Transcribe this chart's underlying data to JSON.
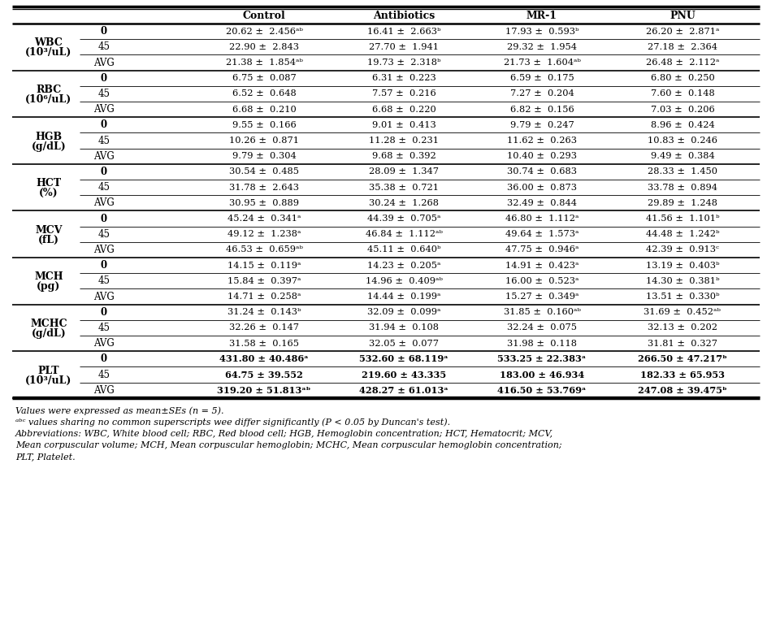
{
  "col_headers": [
    "Control",
    "Antibiotics",
    "MR-1",
    "PNU"
  ],
  "row_groups": [
    {
      "label1": "WBC",
      "label2": "(10³/uL)",
      "rows": [
        [
          "0",
          "20.62 ±  2.456ᵃᵇ",
          "16.41 ±  2.663ᵇ",
          "17.93 ±  0.593ᵇ",
          "26.20 ±  2.871ᵃ",
          false
        ],
        [
          "45",
          "22.90 ±  2.843",
          "27.70 ±  1.941",
          "29.32 ±  1.954",
          "27.18 ±  2.364",
          false
        ],
        [
          "AVG",
          "21.38 ±  1.854ᵃᵇ",
          "19.73 ±  2.318ᵇ",
          "21.73 ±  1.604ᵃᵇ",
          "26.48 ±  2.112ᵃ",
          false
        ]
      ]
    },
    {
      "label1": "RBC",
      "label2": "(10⁶/uL)",
      "rows": [
        [
          "0",
          "6.75 ±  0.087",
          "6.31 ±  0.223",
          "6.59 ±  0.175",
          "6.80 ±  0.250",
          false
        ],
        [
          "45",
          "6.52 ±  0.648",
          "7.57 ±  0.216",
          "7.27 ±  0.204",
          "7.60 ±  0.148",
          false
        ],
        [
          "AVG",
          "6.68 ±  0.210",
          "6.68 ±  0.220",
          "6.82 ±  0.156",
          "7.03 ±  0.206",
          false
        ]
      ]
    },
    {
      "label1": "HGB",
      "label2": "(g/dL)",
      "rows": [
        [
          "0",
          "9.55 ±  0.166",
          "9.01 ±  0.413",
          "9.79 ±  0.247",
          "8.96 ±  0.424",
          false
        ],
        [
          "45",
          "10.26 ±  0.871",
          "11.28 ±  0.231",
          "11.62 ±  0.263",
          "10.83 ±  0.246",
          false
        ],
        [
          "AVG",
          "9.79 ±  0.304",
          "9.68 ±  0.392",
          "10.40 ±  0.293",
          "9.49 ±  0.384",
          false
        ]
      ]
    },
    {
      "label1": "HCT",
      "label2": "(%)",
      "rows": [
        [
          "0",
          "30.54 ±  0.485",
          "28.09 ±  1.347",
          "30.74 ±  0.683",
          "28.33 ±  1.450",
          false
        ],
        [
          "45",
          "31.78 ±  2.643",
          "35.38 ±  0.721",
          "36.00 ±  0.873",
          "33.78 ±  0.894",
          false
        ],
        [
          "AVG",
          "30.95 ±  0.889",
          "30.24 ±  1.268",
          "32.49 ±  0.844",
          "29.89 ±  1.248",
          false
        ]
      ]
    },
    {
      "label1": "MCV",
      "label2": "(fL)",
      "rows": [
        [
          "0",
          "45.24 ±  0.341ᵃ",
          "44.39 ±  0.705ᵃ",
          "46.80 ±  1.112ᵃ",
          "41.56 ±  1.101ᵇ",
          false
        ],
        [
          "45",
          "49.12 ±  1.238ᵃ",
          "46.84 ±  1.112ᵃᵇ",
          "49.64 ±  1.573ᵃ",
          "44.48 ±  1.242ᵇ",
          false
        ],
        [
          "AVG",
          "46.53 ±  0.659ᵃᵇ",
          "45.11 ±  0.640ᵇ",
          "47.75 ±  0.946ᵃ",
          "42.39 ±  0.913ᶜ",
          false
        ]
      ]
    },
    {
      "label1": "MCH",
      "label2": "(pg)",
      "rows": [
        [
          "0",
          "14.15 ±  0.119ᵃ",
          "14.23 ±  0.205ᵃ",
          "14.91 ±  0.423ᵃ",
          "13.19 ±  0.403ᵇ",
          false
        ],
        [
          "45",
          "15.84 ±  0.397ᵃ",
          "14.96 ±  0.409ᵃᵇ",
          "16.00 ±  0.523ᵃ",
          "14.30 ±  0.381ᵇ",
          false
        ],
        [
          "AVG",
          "14.71 ±  0.258ᵃ",
          "14.44 ±  0.199ᵃ",
          "15.27 ±  0.349ᵃ",
          "13.51 ±  0.330ᵇ",
          false
        ]
      ]
    },
    {
      "label1": "MCHC",
      "label2": "(g/dL)",
      "rows": [
        [
          "0",
          "31.24 ±  0.143ᵇ",
          "32.09 ±  0.099ᵃ",
          "31.85 ±  0.160ᵃᵇ",
          "31.69 ±  0.452ᵃᵇ",
          false
        ],
        [
          "45",
          "32.26 ±  0.147",
          "31.94 ±  0.108",
          "32.24 ±  0.075",
          "32.13 ±  0.202",
          false
        ],
        [
          "AVG",
          "31.58 ±  0.165",
          "32.05 ±  0.077",
          "31.98 ±  0.118",
          "31.81 ±  0.327",
          false
        ]
      ]
    },
    {
      "label1": "PLT",
      "label2": "(10³/uL)",
      "rows": [
        [
          "0",
          "431.80 ± 40.486ᵃ",
          "532.60 ± 68.119ᵃ",
          "533.25 ± 22.383ᵃ",
          "266.50 ± 47.217ᵇ",
          true
        ],
        [
          "45",
          "64.75 ± 39.552",
          "219.60 ± 43.335",
          "183.00 ± 46.934",
          "182.33 ± 65.953",
          true
        ],
        [
          "AVG",
          "319.20 ± 51.813ᵃᵇ",
          "428.27 ± 61.013ᵃ",
          "416.50 ± 53.769ᵃ",
          "247.08 ± 39.475ᵇ",
          true
        ]
      ]
    }
  ],
  "footnotes": [
    "Values were expressed as mean±SEs (n = 5).",
    "ᵃᵇᶜ values sharing no common superscripts wee differ significantly (P < 0.05 by Duncan's test).",
    "Abbreviations: WBC, White blood cell; RBC, Red blood cell; HGB, Hemoglobin concentration; HCT, Hematocrit; MCV,",
    "Mean corpuscular volume; MCH, Mean corpuscular hemoglobin; MCHC, Mean corpuscular hemoglobin concentration;",
    "PLT, Platelet."
  ]
}
